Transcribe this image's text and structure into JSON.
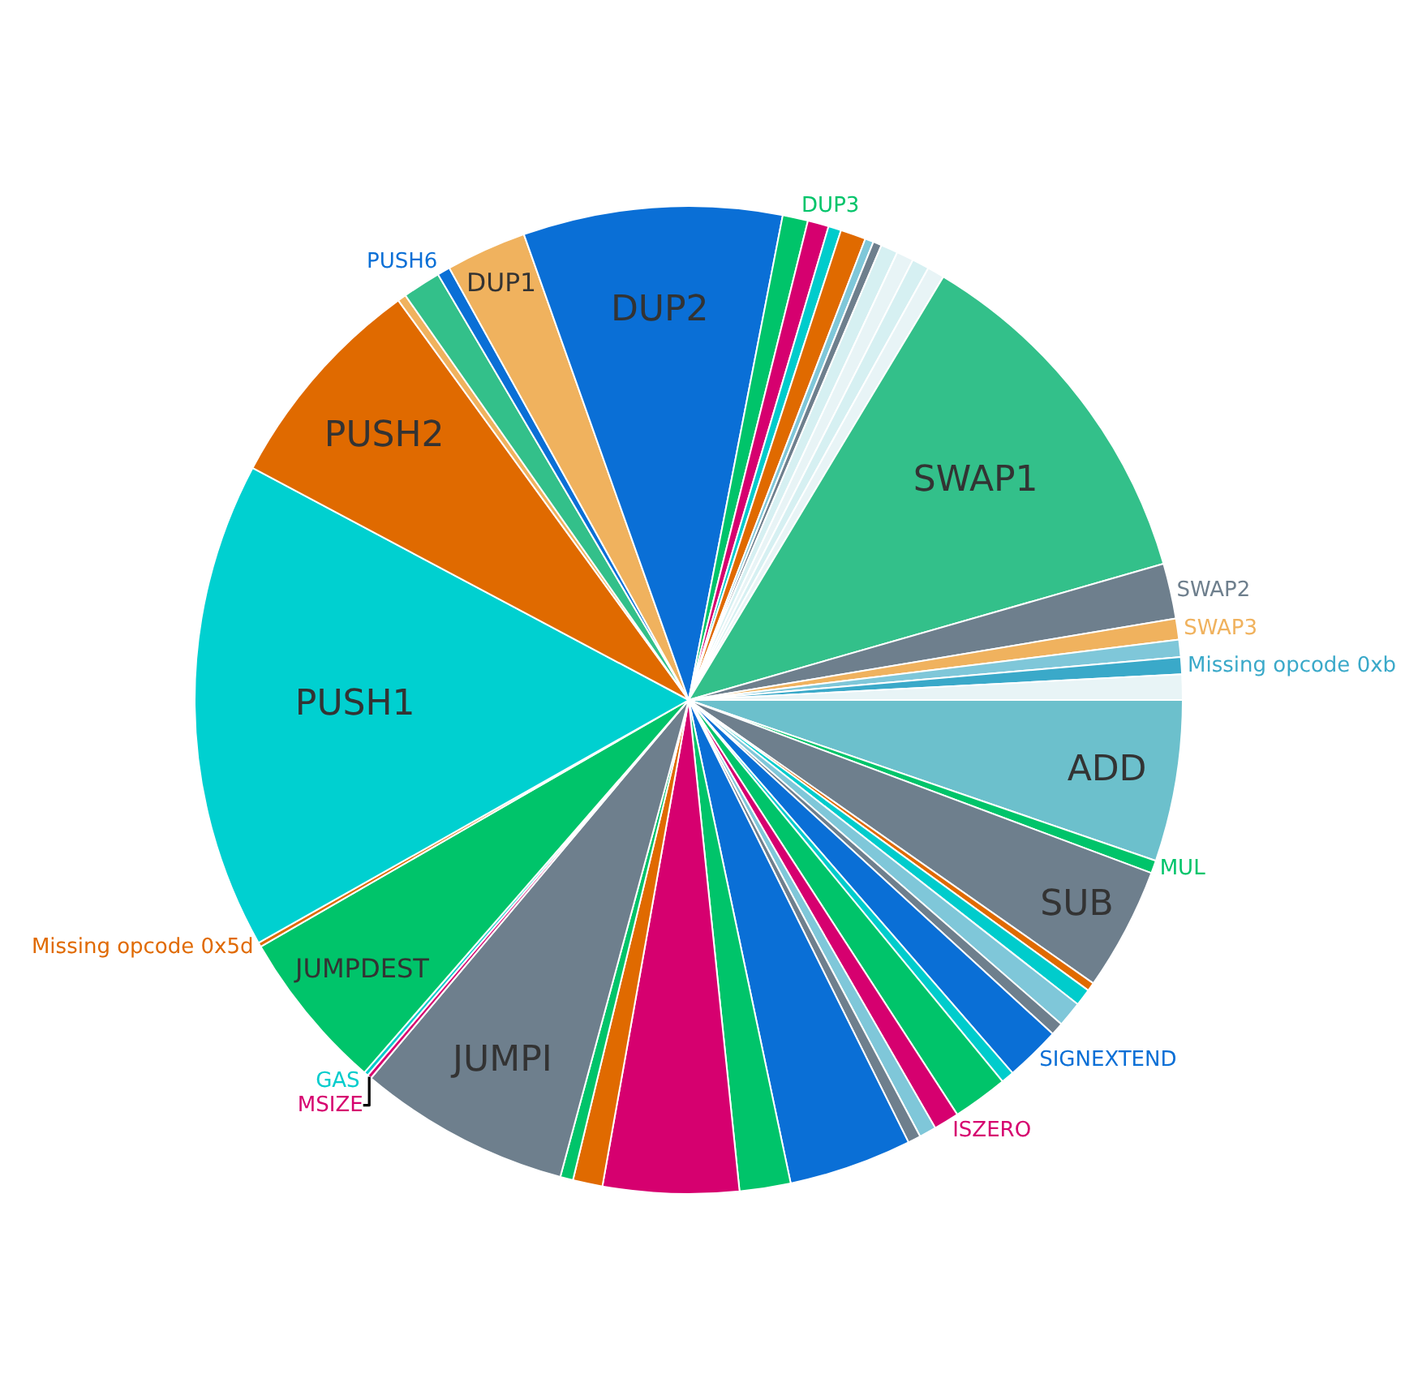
{
  "chart_data": {
    "type": "pie",
    "categories": [
      "ADD",
      "MUL",
      "SUB",
      null,
      null,
      null,
      null,
      "SIGNEXTEND",
      null,
      null,
      "ISZERO",
      null,
      null,
      null,
      null,
      null,
      null,
      null,
      "JUMPI",
      "MSIZE",
      "GAS",
      "JUMPDEST",
      "Missing opcode 0x5d",
      "PUSH1",
      "PUSH2",
      null,
      null,
      "PUSH6",
      "DUP1",
      "DUP2",
      "DUP3",
      null,
      null,
      null,
      null,
      null,
      null,
      null,
      null,
      null,
      "SWAP1",
      "SWAP2",
      "SWAP3",
      null,
      "Missing opcode 0xb",
      null
    ],
    "values": [
      5.28,
      0.42,
      4.03,
      0.28,
      0.56,
      0.83,
      0.42,
      1.81,
      0.42,
      1.81,
      0.83,
      0.56,
      0.42,
      4.03,
      1.67,
      4.44,
      0.97,
      0.42,
      6.94,
      0.14,
      0.14,
      5.28,
      0.14,
      15.97,
      7.22,
      0.28,
      1.25,
      0.42,
      2.64,
      8.47,
      0.83,
      0.69,
      0.42,
      0.83,
      0.28,
      0.28,
      0.56,
      0.56,
      0.56,
      0.56,
      11.94,
      1.81,
      0.69,
      0.56,
      0.56,
      0.83
    ],
    "colors": [
      "#6cc0cc",
      "#00c46a",
      "#6e7f8d",
      "#e06a00",
      "#00cccc",
      "#7fc7d9",
      "#6e7f8d",
      "#0a6fd6",
      "#00cccc",
      "#00c46a",
      "#d6006f",
      "#7fc7d9",
      "#6e7f8d",
      "#0a6fd6",
      "#00c46a",
      "#d6006f",
      "#e06a00",
      "#00c46a",
      "#6e7f8d",
      "#d6006f",
      "#00cccc",
      "#00c46a",
      "#e06a00",
      "#00d0d0",
      "#e06a00",
      "#f0b25e",
      "#33c08a",
      "#0a6fd6",
      "#f0b25e",
      "#0a6fd6",
      "#00c46a",
      "#d6006f",
      "#00cccc",
      "#e06a00",
      "#7fc7d9",
      "#6e7f8d",
      "#d6f0f2",
      "#e8f4f6",
      "#d6f0f2",
      "#e8f4f6",
      "#33c08a",
      "#6e7f8d",
      "#f0b25e",
      "#7fc7d9",
      "#3aa9c9",
      "#e8f4f6"
    ]
  }
}
